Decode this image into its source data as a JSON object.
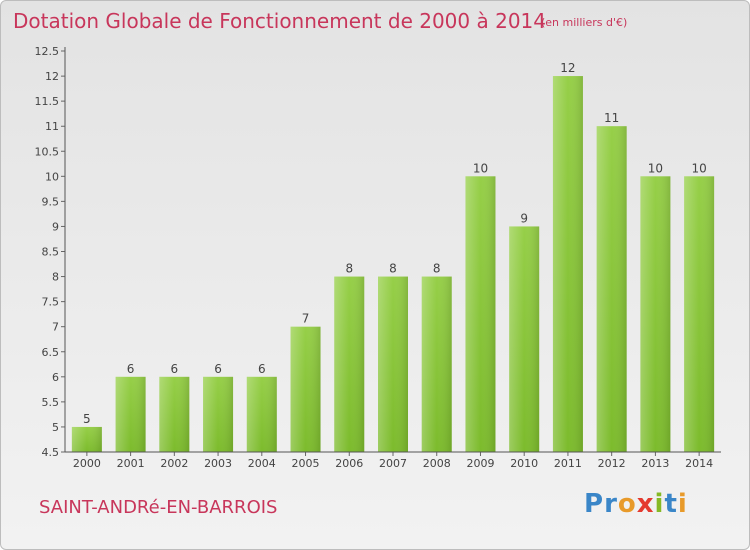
{
  "chart_data": {
    "type": "bar",
    "title": "Dotation Globale de Fonctionnement de 2000 à 2014",
    "subtitle": "(en milliers d'€)",
    "categories": [
      "2000",
      "2001",
      "2002",
      "2003",
      "2004",
      "2005",
      "2006",
      "2007",
      "2008",
      "2009",
      "2010",
      "2011",
      "2012",
      "2013",
      "2014"
    ],
    "values": [
      5,
      6,
      6,
      6,
      6,
      7,
      8,
      8,
      8,
      10,
      9,
      12,
      11,
      10,
      10
    ],
    "ylim": [
      4.5,
      12.5
    ],
    "yticks": [
      "4.5",
      "5",
      "5.5",
      "6",
      "6.5",
      "7",
      "7.5",
      "8",
      "8.5",
      "9",
      "9.5",
      "10",
      "10.5",
      "11",
      "11.5",
      "12",
      "12.5"
    ],
    "xlabel": "",
    "ylabel": "",
    "grid": false,
    "bar_color": "#7cbb2c"
  },
  "footer": {
    "commune": "SAINT-ANDRé-EN-BARROIS",
    "logo_letters": [
      "P",
      "r",
      "o",
      "x",
      "i",
      "t",
      "i"
    ]
  }
}
